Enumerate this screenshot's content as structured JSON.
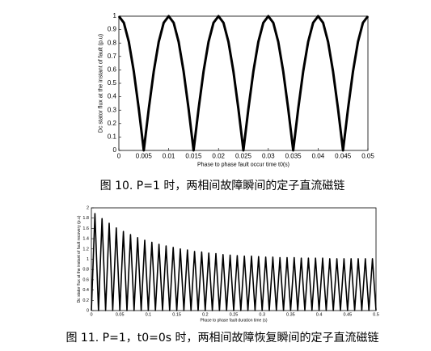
{
  "chart_data": [
    {
      "type": "line",
      "caption": "图 10. P=1 时，两相间故障瞬间的定子直流磁链",
      "xlabel": "Phase to phase fault occur time t0(s)",
      "ylabel": "Dc stator flux at the instant of fault (p.u)",
      "xlim": [
        0,
        0.05
      ],
      "xticks": [
        0,
        0.005,
        0.01,
        0.015,
        0.02,
        0.025,
        0.03,
        0.035,
        0.04,
        0.045,
        0.05
      ],
      "ylim": [
        0,
        1
      ],
      "yticks": [
        0,
        0.1,
        0.2,
        0.3,
        0.4,
        0.5,
        0.6,
        0.7,
        0.8,
        0.9,
        1
      ],
      "color": "#000000",
      "x": [
        0,
        0.001,
        0.002,
        0.003,
        0.004,
        0.005,
        0.006,
        0.007,
        0.008,
        0.009,
        0.01,
        0.011,
        0.012,
        0.013,
        0.014,
        0.015,
        0.016,
        0.017,
        0.018,
        0.019,
        0.02,
        0.021,
        0.022,
        0.023,
        0.024,
        0.025,
        0.026,
        0.027,
        0.028,
        0.029,
        0.03,
        0.031,
        0.032,
        0.033,
        0.034,
        0.035,
        0.036,
        0.037,
        0.038,
        0.039,
        0.04,
        0.041,
        0.042,
        0.043,
        0.044,
        0.045,
        0.046,
        0.047,
        0.048,
        0.049,
        0.05
      ],
      "values": [
        1,
        0.951,
        0.809,
        0.588,
        0.309,
        0,
        0.309,
        0.588,
        0.809,
        0.951,
        1,
        0.951,
        0.809,
        0.588,
        0.309,
        0,
        0.309,
        0.588,
        0.809,
        0.951,
        1,
        0.951,
        0.809,
        0.588,
        0.309,
        0,
        0.309,
        0.588,
        0.809,
        0.951,
        1,
        0.951,
        0.809,
        0.588,
        0.309,
        0,
        0.309,
        0.588,
        0.809,
        0.951,
        1,
        0.951,
        0.809,
        0.588,
        0.309,
        0,
        0.309,
        0.588,
        0.809,
        0.951,
        1
      ]
    },
    {
      "type": "line",
      "caption": "图 11. P=1，t0=0s 时，两相间故障恢复瞬间的定子直流磁链",
      "xlabel": "Phase to phase fault duration time (s)",
      "ylabel": "Dc stator flux at the instant of fault recovery (p.u)",
      "xlim": [
        0,
        0.5
      ],
      "xticks": [
        0,
        0.05,
        0.1,
        0.15,
        0.2,
        0.25,
        0.3,
        0.35,
        0.4,
        0.45,
        0.5
      ],
      "ylim": [
        0,
        2
      ],
      "yticks": [
        0,
        0.2,
        0.4,
        0.6,
        0.8,
        1,
        1.2,
        1.4,
        1.6,
        1.8,
        2
      ],
      "color": "#000000",
      "x": [
        0,
        0.00625,
        0.0125,
        0.01875,
        0.025,
        0.03125,
        0.0375,
        0.04375,
        0.05,
        0.05625,
        0.0625,
        0.06875,
        0.075,
        0.08125,
        0.0875,
        0.09375,
        0.1,
        0.10625,
        0.1125,
        0.11875,
        0.125,
        0.13125,
        0.1375,
        0.14375,
        0.15,
        0.15625,
        0.1625,
        0.16875,
        0.175,
        0.18125,
        0.1875,
        0.19375,
        0.2,
        0.20625,
        0.2125,
        0.21875,
        0.225,
        0.23125,
        0.2375,
        0.24375,
        0.25,
        0.25625,
        0.2625,
        0.26875,
        0.275,
        0.28125,
        0.2875,
        0.29375,
        0.3,
        0.30625,
        0.3125,
        0.31875,
        0.325,
        0.33125,
        0.3375,
        0.34375,
        0.35,
        0.35625,
        0.3625,
        0.36875,
        0.375,
        0.38125,
        0.3875,
        0.39375,
        0.4,
        0.40625,
        0.4125,
        0.41875,
        0.425,
        0.43125,
        0.4375,
        0.44375,
        0.45,
        0.45625,
        0.4625,
        0.46875,
        0.475,
        0.48125,
        0.4875,
        0.49375,
        0.5
      ],
      "values": [
        0,
        1.89,
        0,
        1.79,
        0,
        1.7,
        0,
        1.61,
        0,
        1.54,
        0,
        1.48,
        0,
        1.42,
        0,
        1.37,
        0,
        1.33,
        0,
        1.29,
        0,
        1.26,
        0,
        1.23,
        0,
        1.2,
        0,
        1.18,
        0,
        1.15,
        0,
        1.14,
        0,
        1.12,
        0,
        1.11,
        0,
        1.09,
        0,
        1.08,
        0,
        1.07,
        0,
        1.06,
        0,
        1.06,
        0,
        1.05,
        0,
        1.04,
        0,
        1.04,
        0,
        1.03,
        0,
        1.03,
        0,
        1.03,
        0,
        1.02,
        0,
        1.02,
        0,
        1.02,
        0,
        1.02,
        0,
        1.01,
        0,
        1.01,
        0,
        1.01,
        0,
        1.01,
        0,
        1.01,
        0,
        1.01,
        0,
        1.01,
        0
      ]
    }
  ]
}
